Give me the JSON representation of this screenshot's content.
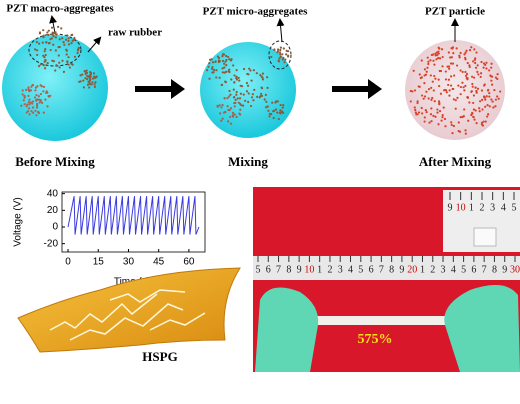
{
  "panels": {
    "labels": {
      "macro": "PZT macro-aggregates",
      "rubber": "raw rubber",
      "micro": "PZT micro-aggregates",
      "particle": "PZT particle"
    },
    "steps": [
      "Before Mixing",
      "Mixing",
      "After Mixing"
    ]
  },
  "chart_data": {
    "type": "line",
    "xlabel": "Time (s)",
    "ylabel": "Voltage (V)",
    "xlim": [
      -3,
      68
    ],
    "ylim": [
      -30,
      42
    ],
    "xticks": [
      0,
      15,
      30,
      45,
      60
    ],
    "yticks": [
      -20,
      0,
      20,
      40
    ],
    "series": [
      {
        "color": "#3a3adf",
        "x": [
          0,
          3,
          3.5,
          6,
          6.5,
          9,
          9.5,
          12,
          12.5,
          15,
          15.5,
          18,
          18.5,
          21,
          21.5,
          24,
          24.5,
          27,
          27.5,
          30,
          30.5,
          33,
          33.5,
          36,
          36.5,
          39,
          39.5,
          42,
          42.5,
          45,
          45.5,
          48,
          48.5,
          51,
          51.5,
          54,
          54.5,
          57,
          57.5,
          60,
          60.5,
          63,
          63.5,
          65
        ],
        "values": [
          0,
          37,
          -9,
          37,
          -9,
          37,
          -9,
          37,
          -9,
          37,
          -9,
          37,
          -9,
          37,
          -9,
          37,
          -9,
          37,
          -9,
          37,
          -9,
          37,
          -9,
          37,
          -9,
          37,
          -9,
          37,
          -9,
          37,
          -9,
          37,
          -9,
          37,
          -9,
          37,
          -9,
          37,
          -9,
          37,
          -9,
          37,
          -9,
          0
        ]
      }
    ]
  },
  "device": {
    "label": "HSPG"
  },
  "photo": {
    "strain": "575%",
    "ruler": [
      "5",
      "6",
      "7",
      "8",
      "9",
      "10",
      "1",
      "2",
      "3",
      "4",
      "5",
      "6",
      "7",
      "8",
      "9",
      "20",
      "1",
      "2",
      "3",
      "4",
      "5",
      "6",
      "7",
      "8",
      "9",
      "30"
    ],
    "inset_ruler": [
      "9",
      "10",
      "1",
      "2",
      "3",
      "4",
      "5"
    ]
  }
}
